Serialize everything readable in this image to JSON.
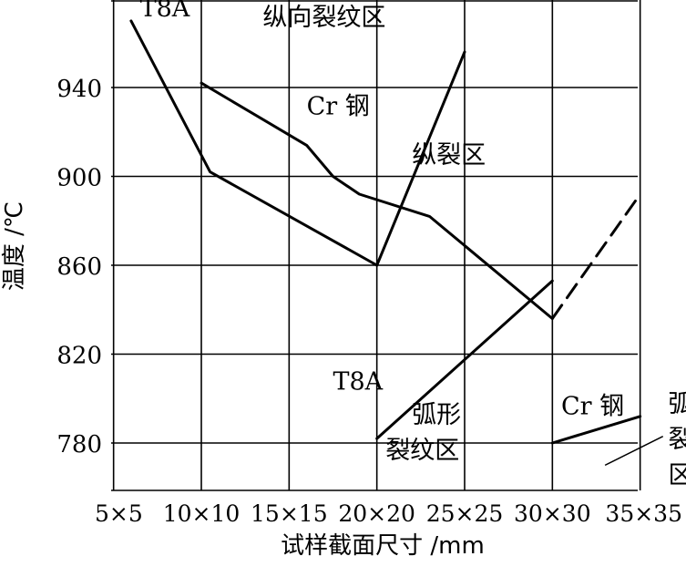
{
  "chart_data": {
    "type": "line",
    "xlabel": "试样截面尺寸 /mm",
    "ylabel": "温度 /℃",
    "x_categories": [
      "5×5",
      "10×10",
      "15×15",
      "20×20",
      "25×25",
      "30×30",
      "35×35"
    ],
    "y_ticks": [
      780,
      820,
      860,
      900,
      940
    ],
    "xlim": [
      5,
      35
    ],
    "ylim": [
      760,
      980
    ],
    "grid": true,
    "series": [
      {
        "name": "T8A",
        "style": "solid",
        "points": [
          [
            6,
            970
          ],
          [
            10.5,
            902
          ],
          [
            20,
            860
          ]
        ]
      },
      {
        "name": "",
        "style": "solid",
        "points": [
          [
            20,
            860
          ],
          [
            25,
            956
          ]
        ]
      },
      {
        "name": "Cr 钢",
        "style": "solid",
        "points": [
          [
            10,
            942
          ],
          [
            16,
            914
          ],
          [
            17.5,
            900
          ],
          [
            19,
            892
          ],
          [
            23,
            882
          ],
          [
            30,
            836
          ]
        ]
      },
      {
        "name": "",
        "style": "dashed",
        "points": [
          [
            30,
            836
          ],
          [
            35,
            892
          ]
        ]
      },
      {
        "name": "T8A",
        "style": "solid",
        "points": [
          [
            20,
            782
          ],
          [
            30,
            853
          ]
        ]
      },
      {
        "name": "Cr 钢",
        "style": "solid",
        "points": [
          [
            30,
            780
          ],
          [
            35,
            792
          ]
        ]
      }
    ],
    "annotations": [
      {
        "text": "T8A",
        "x": 6.5,
        "y": 972
      },
      {
        "text": "纵向裂纹区",
        "x": 13.5,
        "y": 968
      },
      {
        "text": "Cr 钢",
        "x": 16,
        "y": 928
      },
      {
        "text": "纵裂区",
        "x": 22,
        "y": 906
      },
      {
        "text": "T8A",
        "x": 17.5,
        "y": 804
      },
      {
        "text": "弧形",
        "x": 22,
        "y": 789
      },
      {
        "text": "裂纹区",
        "x": 20.5,
        "y": 773
      },
      {
        "text": "Cr 钢",
        "x": 30.5,
        "y": 793
      },
      {
        "text": "弧",
        "x": 36.6,
        "y": 794
      },
      {
        "text": "裂",
        "x": 36.6,
        "y": 778
      },
      {
        "text": "区",
        "x": 36.6,
        "y": 762
      }
    ],
    "pointer_line": {
      "from": [
        33,
        770
      ],
      "to": [
        36.3,
        783
      ]
    }
  }
}
